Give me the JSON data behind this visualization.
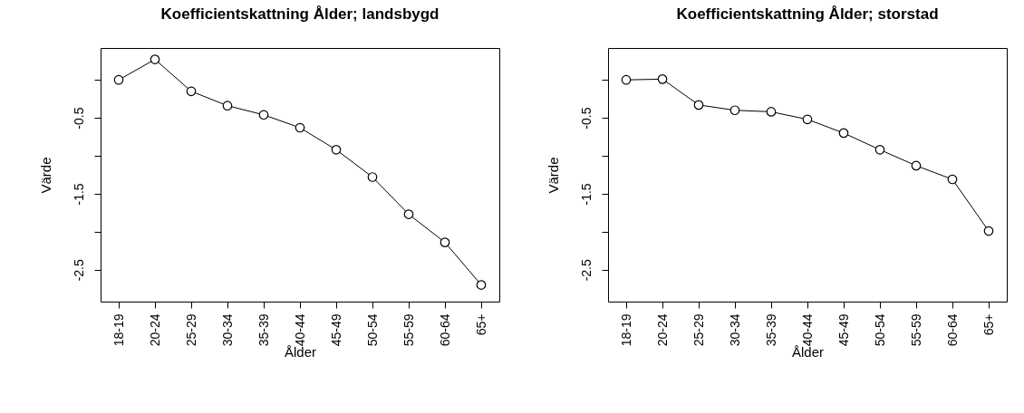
{
  "chart_data": [
    {
      "type": "line",
      "title": "Koefficientskattning Ålder; landsbygd",
      "xlabel": "Ålder",
      "ylabel": "Värde",
      "categories": [
        "18-19",
        "20-24",
        "25-29",
        "30-34",
        "35-39",
        "40-44",
        "45-49",
        "50-54",
        "55-59",
        "60-64",
        "65+"
      ],
      "values": [
        0.0,
        0.27,
        -0.15,
        -0.34,
        -0.46,
        -0.63,
        -0.92,
        -1.28,
        -1.77,
        -2.14,
        -2.7
      ],
      "color": "#000000",
      "ylim": [
        -2.92,
        0.42
      ],
      "yticks": [
        {
          "value": 0,
          "label": null
        },
        -0.5,
        {
          "value": -1,
          "label": null
        },
        -1.5,
        {
          "value": -2,
          "label": null
        },
        -2.5
      ],
      "grid": false,
      "marker": "circle",
      "line_style": "solid"
    },
    {
      "type": "line",
      "title": "Koefficientskattning Ålder; storstad",
      "xlabel": "Ålder",
      "ylabel": "Värde",
      "categories": [
        "18-19",
        "20-24",
        "25-29",
        "30-34",
        "35-39",
        "40-44",
        "45-49",
        "50-54",
        "55-59",
        "60-64",
        "65+"
      ],
      "values": [
        0.0,
        0.01,
        -0.33,
        -0.4,
        -0.42,
        -0.52,
        -0.7,
        -0.92,
        -1.13,
        -1.31,
        -1.99
      ],
      "color": "#000000",
      "ylim": [
        -2.92,
        0.42
      ],
      "yticks": [
        {
          "value": 0,
          "label": null
        },
        -0.5,
        {
          "value": -1,
          "label": null
        },
        -1.5,
        {
          "value": -2,
          "label": null
        },
        -2.5
      ],
      "grid": false,
      "marker": "circle",
      "line_style": "solid"
    }
  ]
}
